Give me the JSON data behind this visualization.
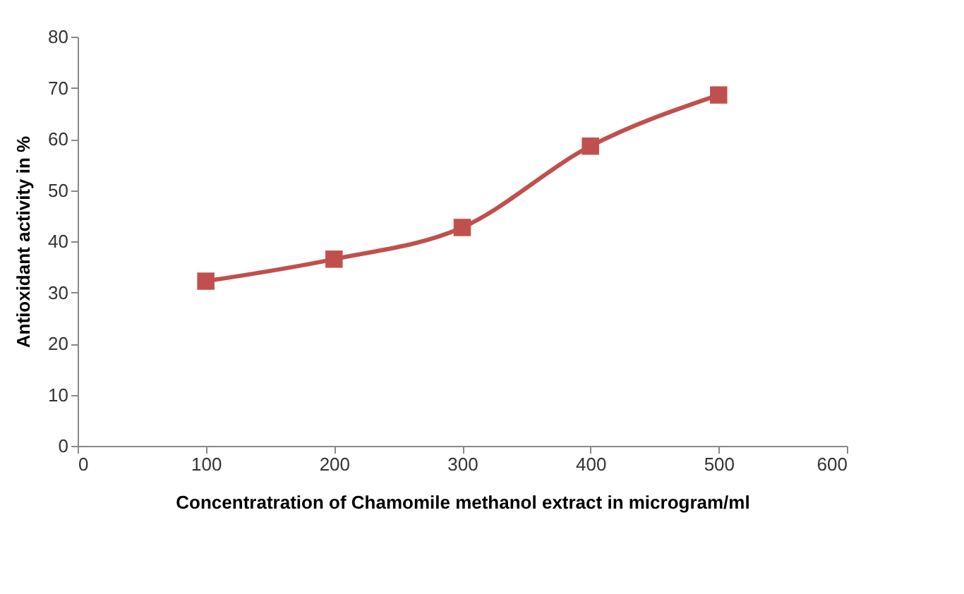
{
  "chart_data": {
    "type": "line",
    "xlabel": "Concentratration of  Chamomile methanol extract in microgram/ml",
    "ylabel": "Antioxidant activity in %",
    "x": [
      100,
      200,
      300,
      400,
      500
    ],
    "series": [
      {
        "color": "#c0504d",
        "values": [
          32.2,
          36.5,
          42.7,
          58.6,
          68.6
        ]
      }
    ],
    "xlim": [
      0,
      600
    ],
    "xticks": [
      0,
      100,
      200,
      300,
      400,
      500,
      600
    ],
    "ylim": [
      0,
      80
    ],
    "yticks": [
      0,
      10,
      20,
      30,
      40,
      50,
      60,
      70,
      80
    ],
    "grid": false,
    "legend": false,
    "marker": "square",
    "line_style": "solid"
  }
}
